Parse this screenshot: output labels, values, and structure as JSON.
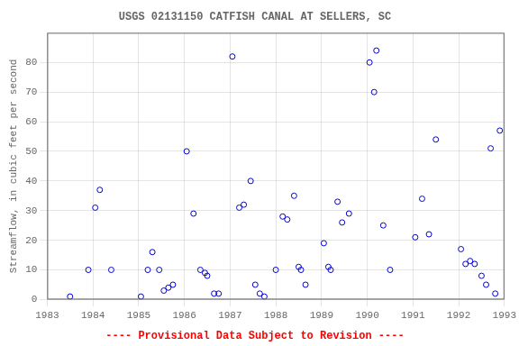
{
  "chart_data": {
    "type": "scatter",
    "title": "USGS 02131150 CATFISH CANAL AT SELLERS, SC",
    "y_label": "Streamflow, in cubic feet per second",
    "annotations": [
      {
        "text": "---- Provisional Data Subject to Revision ----",
        "color": "red"
      }
    ],
    "x": [
      1983.5,
      1983.9,
      1984.05,
      1984.15,
      1984.4,
      1985.05,
      1985.2,
      1985.3,
      1985.45,
      1985.55,
      1985.65,
      1985.75,
      1986.05,
      1986.2,
      1986.35,
      1986.45,
      1986.5,
      1986.65,
      1986.75,
      1987.05,
      1987.2,
      1987.3,
      1987.45,
      1987.55,
      1987.65,
      1987.75,
      1988.0,
      1988.15,
      1988.25,
      1988.4,
      1988.5,
      1988.55,
      1988.65,
      1989.05,
      1989.15,
      1989.2,
      1989.35,
      1989.45,
      1989.6,
      1990.05,
      1990.15,
      1990.2,
      1990.35,
      1990.5,
      1991.05,
      1991.2,
      1991.35,
      1991.5,
      1992.05,
      1992.15,
      1992.25,
      1992.35,
      1992.5,
      1992.6,
      1992.7,
      1992.8,
      1992.9
    ],
    "values": [
      1,
      10,
      31,
      37,
      10,
      1,
      10,
      16,
      10,
      3,
      4,
      5,
      50,
      29,
      10,
      9,
      8,
      2,
      2,
      82,
      31,
      32,
      40,
      5,
      2,
      1,
      10,
      28,
      27,
      35,
      11,
      10,
      5,
      19,
      11,
      10,
      33,
      26,
      29,
      80,
      70,
      84,
      25,
      10,
      21,
      34,
      22,
      54,
      17,
      12,
      13,
      12,
      8,
      5,
      51,
      2,
      57
    ],
    "color": "#0000cc",
    "marker": "open_circle",
    "xlim": [
      1983,
      1993
    ],
    "xticks": [
      1983,
      1984,
      1985,
      1986,
      1987,
      1988,
      1989,
      1990,
      1991,
      1992,
      1993
    ],
    "ylim": [
      0,
      90
    ],
    "yticks": [
      0,
      10,
      20,
      30,
      40,
      50,
      60,
      70,
      80
    ],
    "grid": true
  }
}
